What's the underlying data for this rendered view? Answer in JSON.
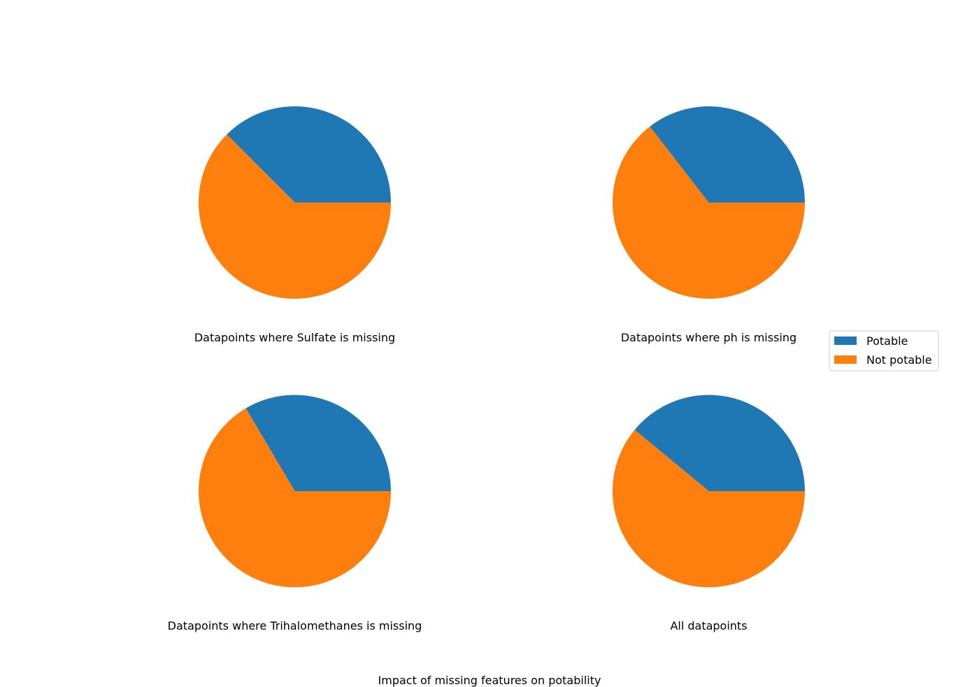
{
  "figure": {
    "caption": "Impact of missing features on potability"
  },
  "legend": {
    "entries": [
      {
        "label": "Potable",
        "color": "#1f77b4"
      },
      {
        "label": "Not potable",
        "color": "#ff7f0e"
      }
    ],
    "placement": "right"
  },
  "chart_data": [
    {
      "type": "pie",
      "title": "Datapoints where Sulfate is missing",
      "labels": [
        "Potable",
        "Not potable"
      ],
      "values": [
        0.375,
        0.625
      ],
      "colors": [
        "#1f77b4",
        "#ff7f0e"
      ],
      "start_angle_deg": 0,
      "direction": "counterclockwise"
    },
    {
      "type": "pie",
      "title": "Datapoints where ph is missing",
      "labels": [
        "Potable",
        "Not potable"
      ],
      "values": [
        0.355,
        0.645
      ],
      "colors": [
        "#1f77b4",
        "#ff7f0e"
      ],
      "start_angle_deg": 0,
      "direction": "counterclockwise"
    },
    {
      "type": "pie",
      "title": "Datapoints where Trihalomethanes is missing",
      "labels": [
        "Potable",
        "Not potable"
      ],
      "values": [
        0.335,
        0.665
      ],
      "colors": [
        "#1f77b4",
        "#ff7f0e"
      ],
      "start_angle_deg": 0,
      "direction": "counterclockwise"
    },
    {
      "type": "pie",
      "title": "All datapoints",
      "labels": [
        "Potable",
        "Not potable"
      ],
      "values": [
        0.39,
        0.61
      ],
      "colors": [
        "#1f77b4",
        "#ff7f0e"
      ],
      "start_angle_deg": 0,
      "direction": "counterclockwise"
    }
  ]
}
